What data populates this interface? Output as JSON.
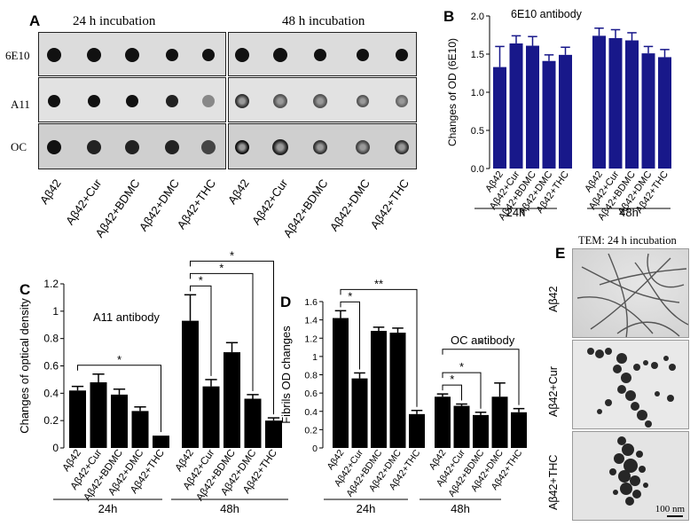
{
  "panelA": {
    "label": "A",
    "col1": "24 h incubation",
    "col2": "48 h incubation",
    "rows": [
      "6E10",
      "A11",
      "OC"
    ],
    "xlabels": [
      "Aβ42",
      "Aβ42+Cur",
      "Aβ42+BDMC",
      "Aβ42+DMC",
      "Aβ42+THC",
      "Aβ42",
      "Aβ42+Cur",
      "Aβ42+BDMC",
      "Aβ42+DMC",
      "Aβ42+THC"
    ]
  },
  "panelE": {
    "label": "E",
    "title": "TEM: 24 h incubation",
    "rows": [
      "Aβ42",
      "Aβ42+Cur",
      "Aβ42+THC"
    ],
    "scale": "100 nm"
  },
  "chart_data": [
    {
      "id": "B",
      "type": "bar",
      "title": "6E10 antibody",
      "ylabel": "Changes of OD (6E10)",
      "ylim": [
        0,
        2.0
      ],
      "yticks": [
        0.0,
        0.5,
        1.0,
        1.5,
        2.0
      ],
      "tick_labels": [
        "0.0",
        "0.5",
        "1.0",
        "1.5",
        "2.0"
      ],
      "color": "#18188a",
      "groups": [
        {
          "name": "24h",
          "categories": [
            "Aβ42",
            "Aβ42+Cur",
            "Aβ42+BDMC",
            "Aβ42+DMC",
            "Aβ42+THC"
          ],
          "values": [
            1.33,
            1.64,
            1.61,
            1.41,
            1.49
          ],
          "errors": [
            0.27,
            0.1,
            0.12,
            0.08,
            0.1
          ]
        },
        {
          "name": "48h",
          "categories": [
            "Aβ42",
            "Aβ42+Cur",
            "Aβ42+BDMC",
            "Aβ42+DMC",
            "Aβ42+THC"
          ],
          "values": [
            1.74,
            1.71,
            1.68,
            1.51,
            1.46
          ],
          "errors": [
            0.1,
            0.11,
            0.1,
            0.09,
            0.1
          ]
        }
      ]
    },
    {
      "id": "C",
      "type": "bar",
      "title": "A11 antibody",
      "ylabel": "Changes of optical density",
      "ylim": [
        0,
        1.2
      ],
      "yticks": [
        0,
        0.2,
        0.4,
        0.6,
        0.8,
        1.0,
        1.2
      ],
      "tick_labels": [
        "0",
        "0.2",
        "0.4",
        "0.6",
        "0.8",
        "1",
        "1.2"
      ],
      "color": "#000000",
      "groups": [
        {
          "name": "24h",
          "categories": [
            "Aβ42",
            "Aβ42+Cur",
            "Aβ42+BDMC",
            "Aβ42+DMC",
            "Aβ42+THC"
          ],
          "values": [
            0.42,
            0.48,
            0.39,
            0.27,
            0.09
          ],
          "errors": [
            0.03,
            0.06,
            0.04,
            0.03,
            0.0
          ]
        },
        {
          "name": "48h",
          "categories": [
            "Aβ42",
            "Aβ42+Cur",
            "Aβ42+BDMC",
            "Aβ42+DMC",
            "Aβ42+THC"
          ],
          "values": [
            0.93,
            0.45,
            0.7,
            0.36,
            0.2
          ],
          "errors": [
            0.19,
            0.05,
            0.07,
            0.03,
            0.02
          ]
        }
      ],
      "brackets": [
        {
          "group": 0,
          "from": 0,
          "to": 4,
          "label": "*"
        },
        {
          "group": 1,
          "from": 0,
          "to": 1,
          "label": "*"
        },
        {
          "group": 1,
          "from": 0,
          "to": 3,
          "label": "*"
        },
        {
          "group": 1,
          "from": 0,
          "to": 4,
          "label": "*"
        }
      ]
    },
    {
      "id": "D",
      "type": "bar",
      "title": "OC antibody",
      "ylabel": "Fibrils OD changes",
      "ylim": [
        0,
        1.6
      ],
      "yticks": [
        0,
        0.2,
        0.4,
        0.6,
        0.8,
        1.0,
        1.2,
        1.4,
        1.6
      ],
      "tick_labels": [
        "0",
        "0.2",
        "0.4",
        "0.6",
        "0.8",
        "1",
        "1.2",
        "1.4",
        "1.6"
      ],
      "color": "#000000",
      "groups": [
        {
          "name": "24h",
          "categories": [
            "Aβ42",
            "Aβ42+Cur",
            "Aβ42+BDMC",
            "Aβ42+DMC",
            "Aβ42+THC"
          ],
          "values": [
            1.42,
            0.76,
            1.28,
            1.26,
            0.37
          ],
          "errors": [
            0.08,
            0.06,
            0.04,
            0.05,
            0.04
          ]
        },
        {
          "name": "48h",
          "categories": [
            "Aβ42",
            "Aβ42+Cur",
            "Aβ42+BDMC",
            "Aβ42+DMC",
            "Aβ42+THC"
          ],
          "values": [
            0.56,
            0.46,
            0.36,
            0.56,
            0.39
          ],
          "errors": [
            0.03,
            0.02,
            0.03,
            0.15,
            0.04
          ]
        }
      ],
      "brackets": [
        {
          "group": 0,
          "from": 0,
          "to": 1,
          "label": "*"
        },
        {
          "group": 0,
          "from": 0,
          "to": 4,
          "label": "**"
        },
        {
          "group": 1,
          "from": 0,
          "to": 1,
          "label": "*"
        },
        {
          "group": 1,
          "from": 0,
          "to": 2,
          "label": "*"
        },
        {
          "group": 1,
          "from": 0,
          "to": 4,
          "label": "*"
        }
      ]
    }
  ]
}
